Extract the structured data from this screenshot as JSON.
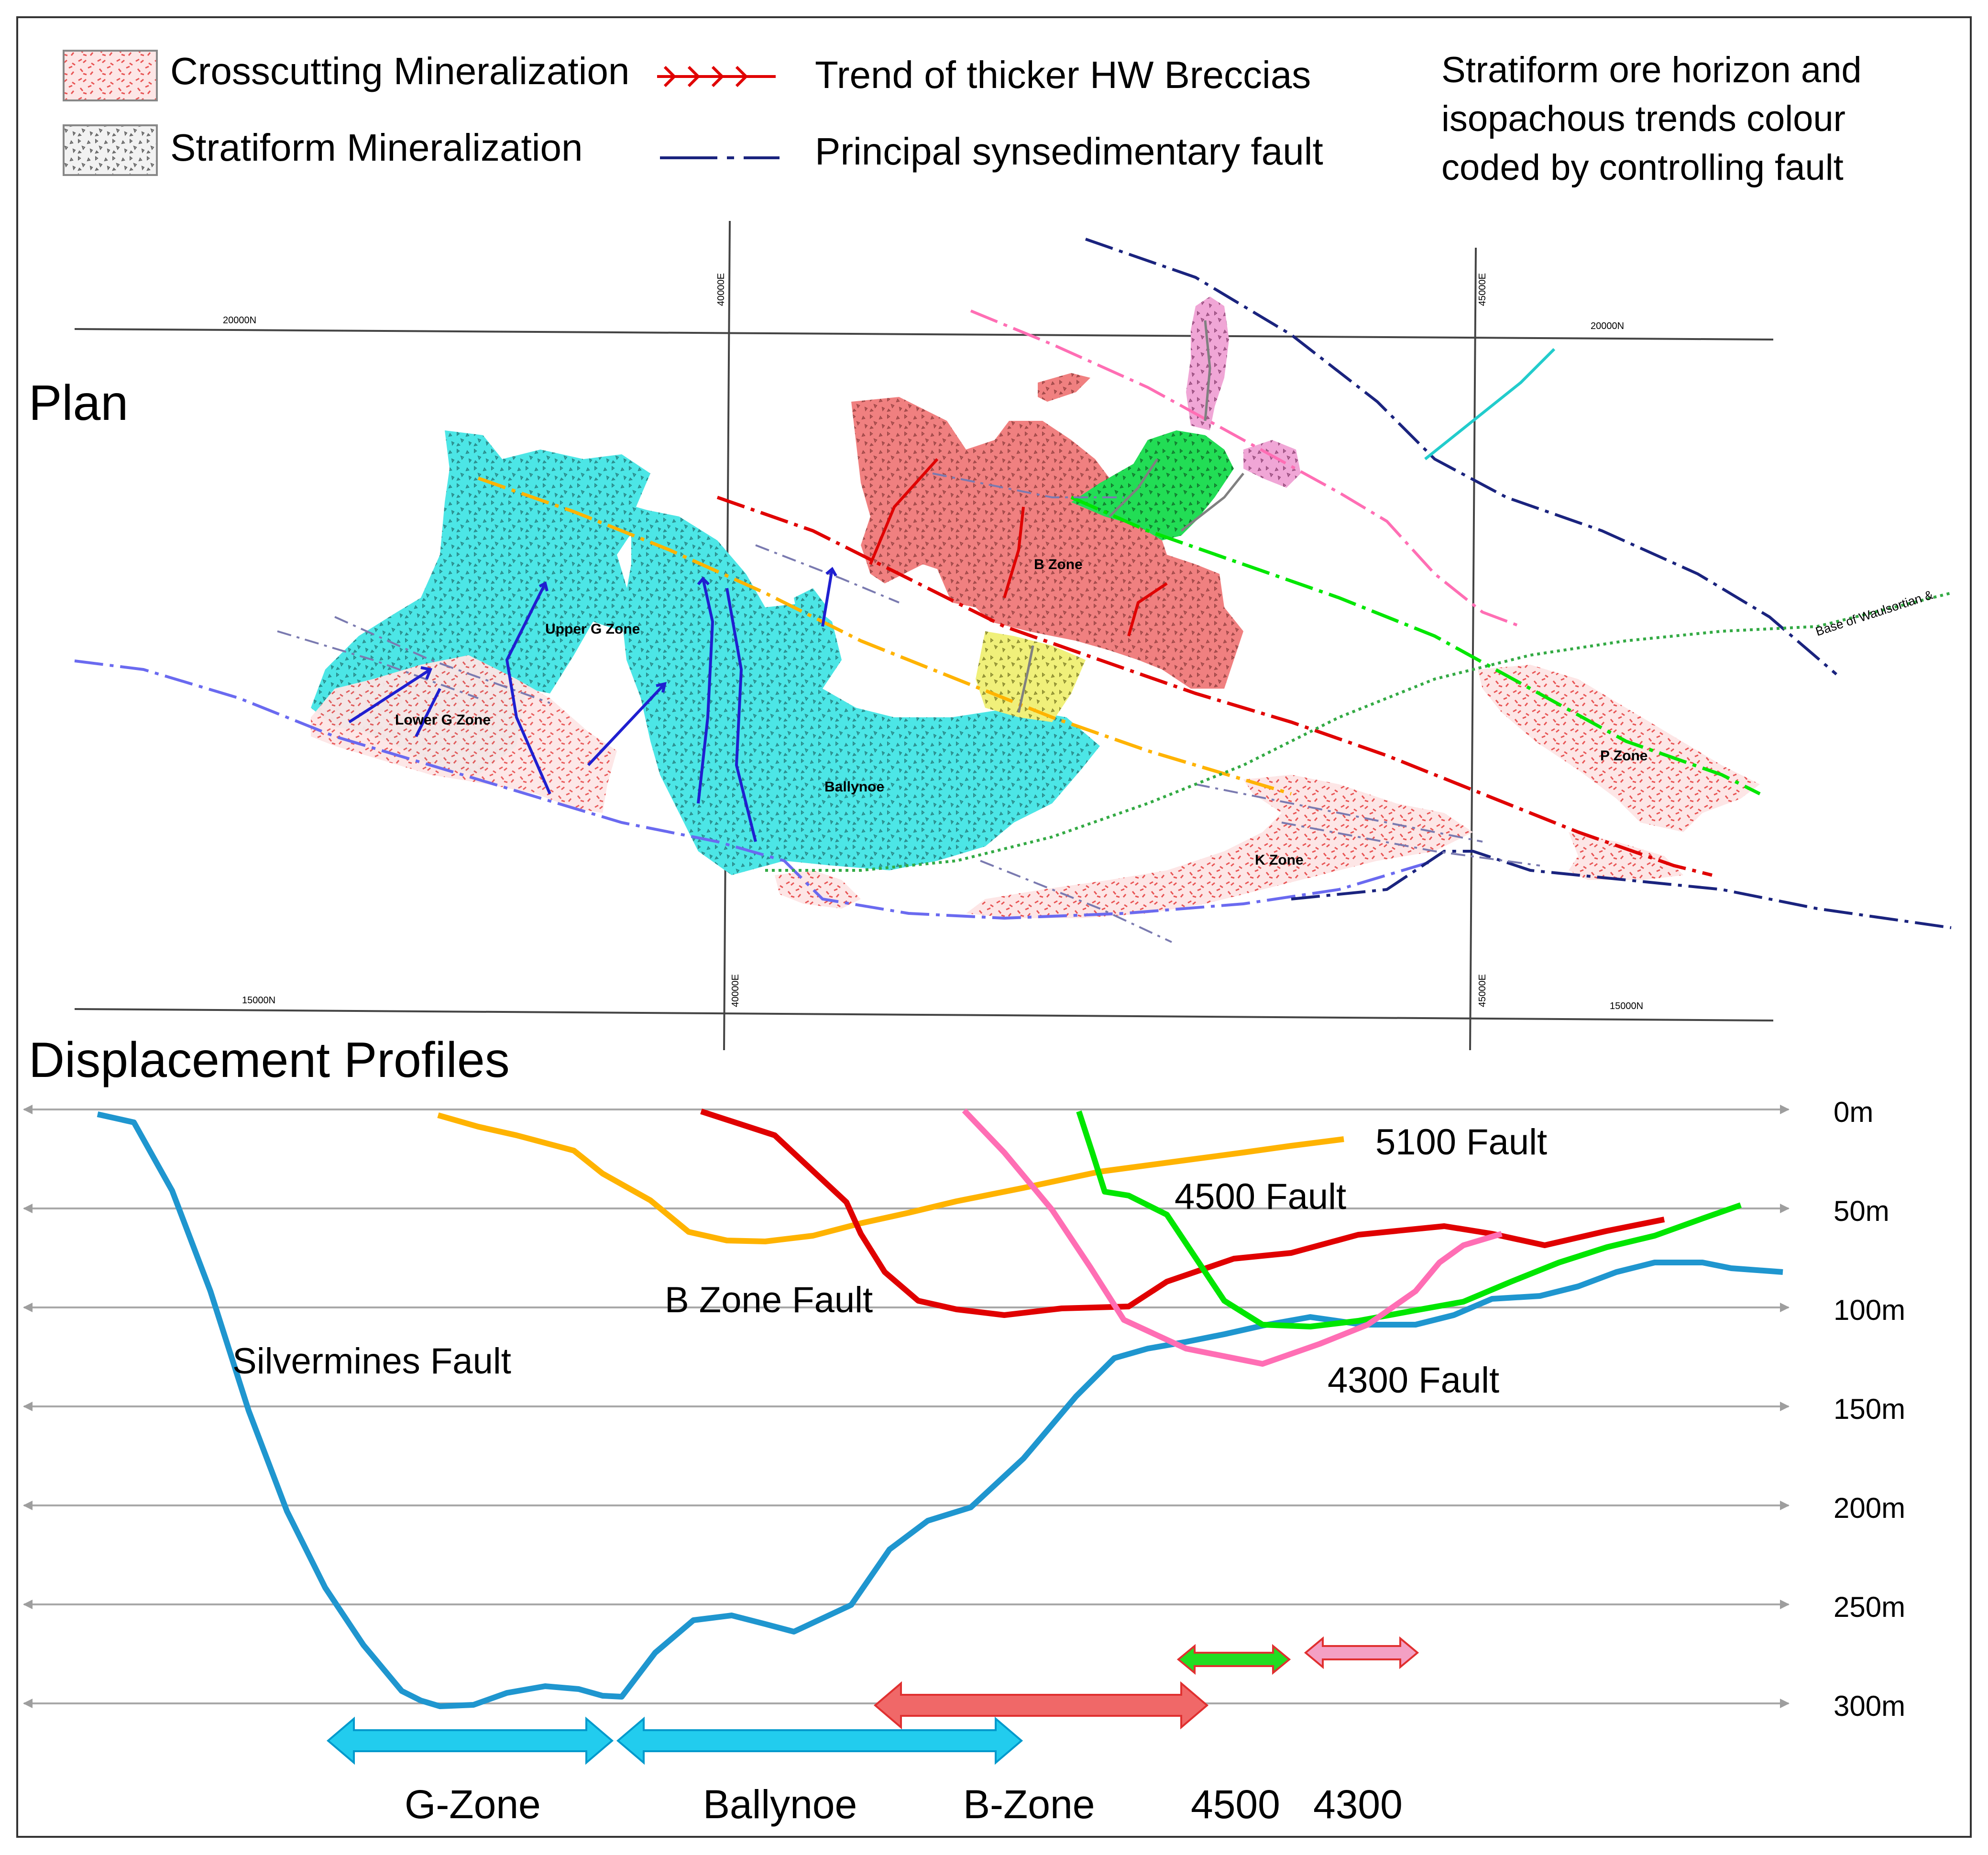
{
  "legend": {
    "crosscutting": "Crosscutting Mineralization",
    "stratiform": "Stratiform Mineralization",
    "breccia_trend": "Trend of thicker HW Breccias",
    "fault": "Principal synsedimentary fault",
    "note_line1": "Stratiform ore horizon and",
    "note_line2": "isopachous trends colour",
    "note_line3": "coded by controlling fault"
  },
  "plan": {
    "title": "Plan",
    "grid": {
      "n_top_left": "20000N",
      "n_top_right": "20000N",
      "n_bottom_left": "15000N",
      "n_bottom_right": "15000N",
      "e_top_1": "40000E",
      "e_top_2": "45000E",
      "e_bottom_1": "40000E",
      "e_bottom_2": "45000E"
    },
    "zones": {
      "upper_g": "Upper G Zone",
      "lower_g": "Lower G Zone",
      "ballynoe": "Ballynoe",
      "b_zone": "B Zone",
      "k_zone": "K Zone",
      "p_zone": "P Zone"
    },
    "base_label": "Base of Waulsortian &"
  },
  "profiles": {
    "title": "Displacement Profiles",
    "depth_labels": [
      "0m",
      "50m",
      "100m",
      "150m",
      "200m",
      "250m",
      "300m"
    ],
    "faults": {
      "f5100": "5100 Fault",
      "f4500": "4500 Fault",
      "bzone": "B Zone Fault",
      "silvermines": "Silvermines Fault",
      "f4300": "4300 Fault"
    },
    "zone_labels": {
      "gzone": "G-Zone",
      "ballynoe": "Ballynoe",
      "bzone": "B-Zone",
      "z4500": "4500",
      "z4300": "4300"
    }
  },
  "colors": {
    "silvermines": "#1f96cf",
    "f5100": "#ffb300",
    "bzone": "#e00000",
    "f4500": "#00e600",
    "f4300": "#ff6eb4",
    "cyan_ore": "#4ce6e6",
    "red_ore": "#f08080",
    "navy": "#1a237e"
  }
}
